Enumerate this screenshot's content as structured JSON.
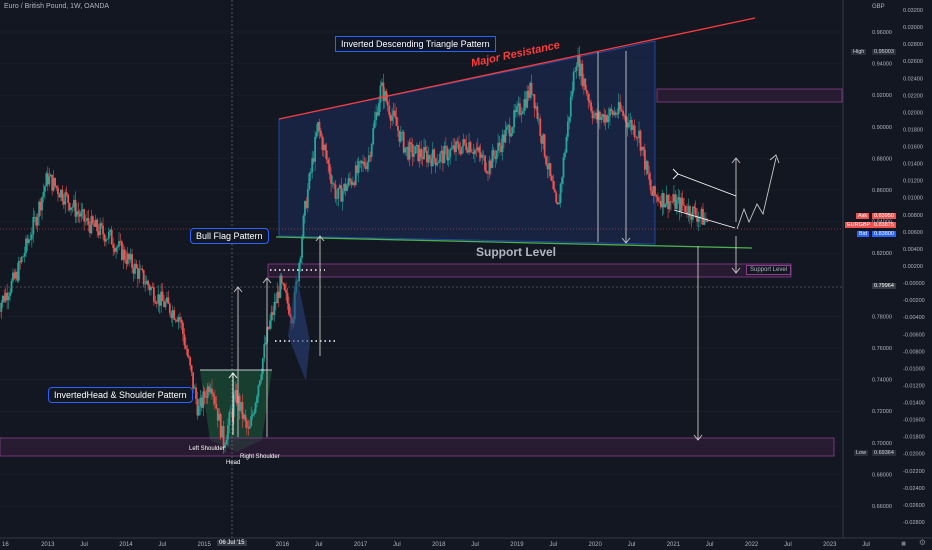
{
  "header": {
    "title": "Euro / British Pound, 1W, OANDA"
  },
  "annotations": {
    "triangle_pattern": "Inverted Descending Triangle Pattern",
    "major_resistance": "Major Resistance",
    "bull_flag": "Bull Flag Pattern",
    "inverted_hs": "InvertedHead & Shoulder Pattern",
    "support_level_main": "Support Level",
    "support_level_box": "Support Level",
    "left_shoulder": "Left Shoulder",
    "head": "Head",
    "right_shoulder": "Right Shoulder"
  },
  "price_axis": {
    "currency": "GBP",
    "left_ticks": [
      "0.96000",
      "0.94000",
      "0.92000",
      "0.90000",
      "0.88000",
      "0.86000",
      "0.84000",
      "0.82000",
      "0.78000",
      "0.76000",
      "0.74000",
      "0.72000",
      "0.70000",
      "0.68000",
      "0.66000"
    ],
    "right_ticks": [
      "0.03200",
      "0.03000",
      "0.02800",
      "0.02600",
      "0.02400",
      "0.02200",
      "0.02000",
      "0.01800",
      "0.01600",
      "0.01400",
      "0.01200",
      "0.01000",
      "0.00800",
      "0.00600",
      "0.00400",
      "0.00200",
      "-0.00000",
      "-0.00200",
      "-0.00400",
      "-0.00600",
      "-0.00800",
      "-0.01000",
      "-0.01200",
      "-0.01400",
      "-0.01600",
      "-0.01800",
      "-0.02000",
      "-0.02200",
      "-0.02400",
      "-0.02600",
      "-0.02800"
    ],
    "tags": {
      "high_label": "High",
      "high_value": "0.95003",
      "ask_label": "Ask",
      "ask_value": "0.83950",
      "symbol_label": "EURGBP",
      "symbol_value": "0.83875",
      "bid_label": "Bid",
      "bid_value": "0.83800",
      "crosshair_value": "0.79964",
      "low_label": "Low",
      "low_value": "0.69364"
    }
  },
  "time_axis": {
    "labels": [
      "16",
      "2013",
      "Jul",
      "2014",
      "Jul",
      "2015",
      "Jul",
      "2016",
      "Jul",
      "2017",
      "Jul",
      "2018",
      "Jul",
      "2019",
      "Jul",
      "2020",
      "Jul",
      "2021",
      "Jul",
      "2022",
      "Jul",
      "2023",
      "Jul"
    ],
    "cursor_date": "06 Jul '15"
  },
  "colors": {
    "background": "#131722",
    "bull": "#26a69a",
    "bear": "#ef5350",
    "resistance": "#ff3b3b",
    "support": "#4caf50",
    "pattern_fill": "#1b2d5a",
    "zone_border": "#8a3f8a"
  },
  "chart_data": {
    "type": "candlestick",
    "symbol": "EURGBP",
    "timeframe": "1W",
    "ylim": [
      0.66,
      0.97
    ],
    "x_range": [
      "2012-07",
      "2023-09"
    ],
    "close_path": [
      {
        "t": "2012-07",
        "v": 0.785
      },
      {
        "t": "2012-10",
        "v": 0.805
      },
      {
        "t": "2013-01",
        "v": 0.84
      },
      {
        "t": "2013-03",
        "v": 0.868
      },
      {
        "t": "2013-06",
        "v": 0.855
      },
      {
        "t": "2013-09",
        "v": 0.84
      },
      {
        "t": "2014-01",
        "v": 0.83
      },
      {
        "t": "2014-05",
        "v": 0.81
      },
      {
        "t": "2014-09",
        "v": 0.79
      },
      {
        "t": "2014-12",
        "v": 0.78
      },
      {
        "t": "2015-03",
        "v": 0.72
      },
      {
        "t": "2015-05",
        "v": 0.74
      },
      {
        "t": "2015-07",
        "v": 0.7
      },
      {
        "t": "2015-09",
        "v": 0.73
      },
      {
        "t": "2015-11",
        "v": 0.705
      },
      {
        "t": "2016-02",
        "v": 0.77
      },
      {
        "t": "2016-04",
        "v": 0.8
      },
      {
        "t": "2016-06",
        "v": 0.78
      },
      {
        "t": "2016-08",
        "v": 0.85
      },
      {
        "t": "2016-10",
        "v": 0.9
      },
      {
        "t": "2017-01",
        "v": 0.855
      },
      {
        "t": "2017-06",
        "v": 0.88
      },
      {
        "t": "2017-08",
        "v": 0.925
      },
      {
        "t": "2017-12",
        "v": 0.885
      },
      {
        "t": "2018-05",
        "v": 0.88
      },
      {
        "t": "2018-10",
        "v": 0.89
      },
      {
        "t": "2019-01",
        "v": 0.875
      },
      {
        "t": "2019-08",
        "v": 0.925
      },
      {
        "t": "2019-12",
        "v": 0.845
      },
      {
        "t": "2020-03",
        "v": 0.945
      },
      {
        "t": "2020-06",
        "v": 0.905
      },
      {
        "t": "2020-10",
        "v": 0.91
      },
      {
        "t": "2021-01",
        "v": 0.895
      },
      {
        "t": "2021-03",
        "v": 0.857
      },
      {
        "t": "2021-08",
        "v": 0.85
      },
      {
        "t": "2021-12",
        "v": 0.84
      }
    ],
    "lines": [
      {
        "name": "Major Resistance",
        "from": {
          "t": "2016-10",
          "v": 0.904
        },
        "to": {
          "t": "2022-12",
          "v": 0.968
        }
      },
      {
        "name": "Support Level",
        "from": {
          "t": "2016-10",
          "v": 0.838
        },
        "to": {
          "t": "2022-03",
          "v": 0.828
        }
      }
    ],
    "zones": [
      {
        "name": "Support Level",
        "from": [
          0.801,
          0.811
        ]
      },
      {
        "name": "Low zone",
        "from": [
          0.693,
          0.703
        ]
      },
      {
        "name": "Upper zone",
        "from": [
          0.908,
          0.916
        ]
      }
    ]
  }
}
